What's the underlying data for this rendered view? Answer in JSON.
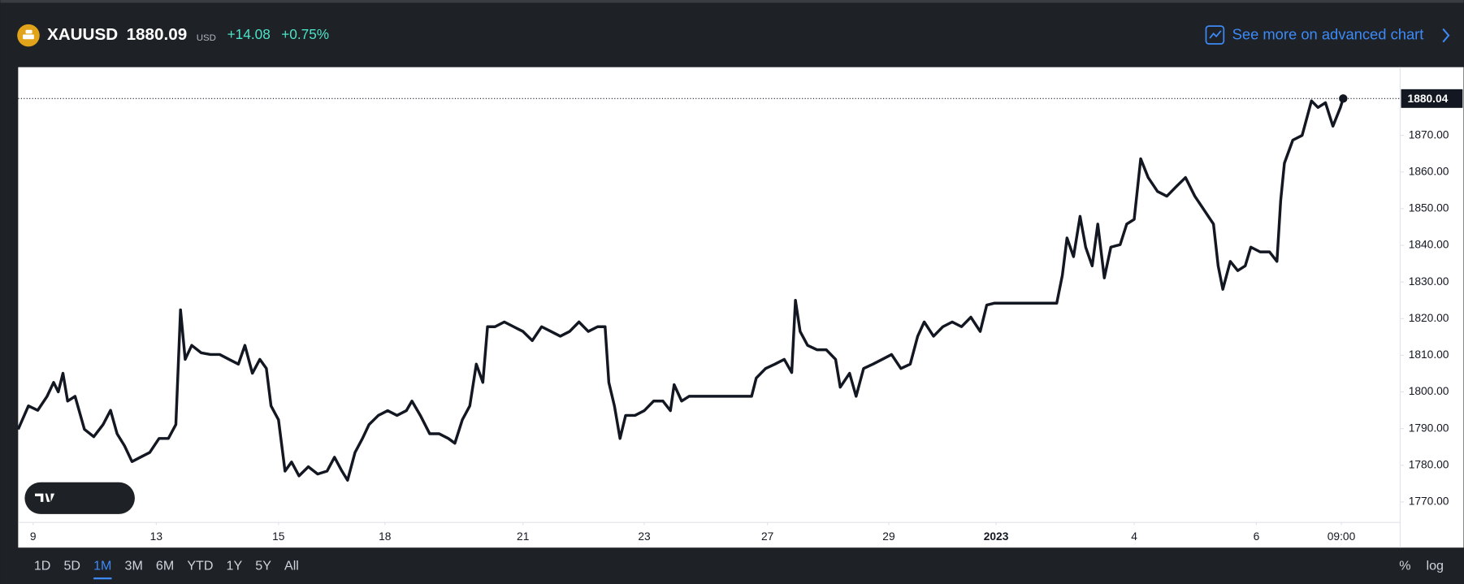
{
  "header": {
    "symbol": "XAUUSD",
    "price": 1880.09,
    "currency": "USD",
    "change": "+14.08",
    "change_percent": "+0.75%",
    "link": "See more on advanced chart"
  },
  "chart_data": {
    "type": "line",
    "color": "#131722",
    "grid": false,
    "x": [
      0,
      11,
      21,
      31,
      38,
      43,
      48,
      53,
      61,
      71,
      81,
      91,
      99,
      106,
      114,
      122,
      131,
      141,
      151,
      161,
      169,
      174,
      179,
      186,
      196,
      206,
      216,
      226,
      236,
      243,
      251,
      259,
      266,
      271,
      279,
      286,
      293,
      301,
      311,
      321,
      331,
      339,
      347,
      353,
      361,
      369,
      376,
      386,
      396,
      406,
      416,
      422,
      431,
      441,
      451,
      461,
      468,
      476,
      484,
      491,
      498,
      503,
      511,
      521,
      531,
      541,
      551,
      561,
      571,
      581,
      591,
      601,
      611,
      621,
      629,
      633,
      639,
      645,
      651,
      661,
      671,
      681,
      691,
      699,
      703,
      711,
      719,
      741,
      786,
      791,
      801,
      811,
      821,
      829,
      833,
      838,
      846,
      856,
      866,
      876,
      881,
      891,
      898,
      906,
      916,
      926,
      936,
      946,
      956,
      964,
      971,
      981,
      991,
      1001,
      1011,
      1021,
      1031,
      1038,
      1046,
      1113,
      1119,
      1124,
      1131,
      1138,
      1144,
      1151,
      1157,
      1164,
      1171,
      1181,
      1188,
      1196,
      1203,
      1211,
      1221,
      1231,
      1241,
      1251,
      1261,
      1271,
      1281,
      1286,
      1291,
      1299,
      1307,
      1315,
      1321,
      1331,
      1341,
      1349,
      1353,
      1357,
      1366,
      1376,
      1386,
      1393,
      1401,
      1409,
      1417,
      1420
    ],
    "values": [
      1789.8,
      1796.2,
      1795,
      1798.8,
      1802.6,
      1800,
      1805.1,
      1797.5,
      1798.8,
      1789.8,
      1787.8,
      1791.1,
      1795,
      1788.6,
      1785.3,
      1781,
      1782.2,
      1783.5,
      1787.3,
      1787.3,
      1791.1,
      1822.4,
      1808.9,
      1812.7,
      1810.7,
      1810.2,
      1810.2,
      1808.9,
      1807.6,
      1812.7,
      1805.1,
      1808.9,
      1806.4,
      1796.2,
      1792.4,
      1778.4,
      1780.9,
      1777.1,
      1779.6,
      1777.6,
      1778.4,
      1782.2,
      1778.4,
      1775.9,
      1783.5,
      1787.3,
      1791.1,
      1793.6,
      1794.9,
      1793.6,
      1794.9,
      1797.5,
      1793.6,
      1788.6,
      1788.6,
      1787.3,
      1786,
      1792.4,
      1796.2,
      1807.6,
      1802.6,
      1817.8,
      1817.8,
      1819.1,
      1817.8,
      1816.5,
      1814,
      1817.8,
      1816.5,
      1815.2,
      1816.5,
      1819.1,
      1816.5,
      1817.8,
      1817.8,
      1802.6,
      1796.2,
      1787.3,
      1793.6,
      1793.6,
      1794.9,
      1797.5,
      1797.5,
      1794.9,
      1802,
      1797.5,
      1798.8,
      1798.8,
      1798.8,
      1803.8,
      1806.4,
      1807.6,
      1808.9,
      1805.3,
      1825,
      1816.5,
      1812.7,
      1811.5,
      1811.5,
      1808.9,
      1801.3,
      1805.1,
      1798.8,
      1806.4,
      1807.6,
      1808.9,
      1810.2,
      1806.4,
      1807.6,
      1815.2,
      1819.1,
      1815.2,
      1817.8,
      1819.1,
      1817.8,
      1820.4,
      1816.5,
      1823.7,
      1824.2,
      1824.2,
      1831.8,
      1842,
      1836.9,
      1847.9,
      1839.5,
      1834.4,
      1845.8,
      1831.1,
      1839.5,
      1840.2,
      1845.8,
      1847.1,
      1863.6,
      1858.5,
      1854.7,
      1853.4,
      1856,
      1858.5,
      1853.4,
      1849.6,
      1845.8,
      1834.4,
      1828,
      1835.6,
      1833.1,
      1834.4,
      1839.5,
      1838.2,
      1838.2,
      1835.6,
      1852.2,
      1862.4,
      1868.7,
      1870,
      1879.4,
      1877.6,
      1878.9,
      1872.5,
      1877.6,
      1880.04
    ],
    "last_price": 1880.04,
    "xlim": [
      0,
      1481
    ],
    "xticks": [
      {
        "value": 16,
        "label": "9"
      },
      {
        "value": 148,
        "label": "13"
      },
      {
        "value": 279,
        "label": "15"
      },
      {
        "value": 393,
        "label": "18"
      },
      {
        "value": 541,
        "label": "21"
      },
      {
        "value": 671,
        "label": "23"
      },
      {
        "value": 803,
        "label": "27"
      },
      {
        "value": 933,
        "label": "29"
      },
      {
        "value": 1048,
        "label": "2023",
        "bold": true
      },
      {
        "value": 1196,
        "label": "4"
      },
      {
        "value": 1327,
        "label": "6"
      },
      {
        "value": 1418,
        "label": "09:00"
      }
    ],
    "ylim": [
      1764.4,
      1888.6
    ],
    "yticks": [
      {
        "value": 1770,
        "label": "1770.00"
      },
      {
        "value": 1780,
        "label": "1780.00"
      },
      {
        "value": 1790,
        "label": "1790.00"
      },
      {
        "value": 1800,
        "label": "1800.00"
      },
      {
        "value": 1810,
        "label": "1810.00"
      },
      {
        "value": 1820,
        "label": "1820.00"
      },
      {
        "value": 1830,
        "label": "1830.00"
      },
      {
        "value": 1840,
        "label": "1840.00"
      },
      {
        "value": 1850,
        "label": "1850.00"
      },
      {
        "value": 1860,
        "label": "1860.00"
      },
      {
        "value": 1870,
        "label": "1870.00"
      }
    ]
  },
  "range_buttons": [
    "1D",
    "5D",
    "1M",
    "3M",
    "6M",
    "YTD",
    "1Y",
    "5Y",
    "All"
  ],
  "active_range_index": 2,
  "scale_buttons": [
    "%",
    "log"
  ]
}
